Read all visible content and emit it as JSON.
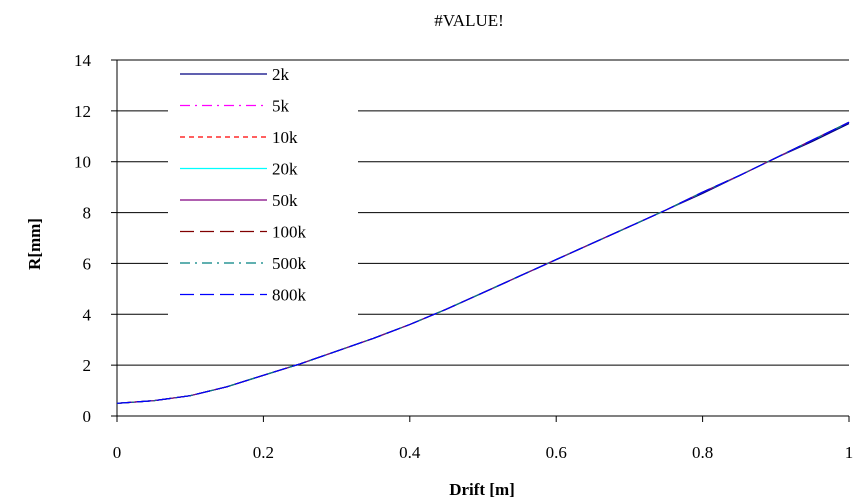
{
  "chart_data": {
    "type": "line",
    "title": "#VALUE!",
    "xlabel": "Drift [m]",
    "ylabel": "R[mm]",
    "xlim": [
      0,
      1
    ],
    "ylim": [
      0,
      14
    ],
    "xticks": [
      0,
      0.2,
      0.4,
      0.6,
      0.8,
      1
    ],
    "xtick_labels": [
      "0",
      "0.2",
      "0.4",
      "0.6",
      "0.8",
      "1"
    ],
    "yticks": [
      0,
      2,
      4,
      6,
      8,
      10,
      12,
      14
    ],
    "ytick_labels": [
      "0",
      "2",
      "4",
      "6",
      "8",
      "10",
      "12",
      "14"
    ],
    "grid": "horizontal",
    "legend_position": "top-left",
    "x": [
      0,
      0.05,
      0.1,
      0.15,
      0.2,
      0.25,
      0.3,
      0.35,
      0.4,
      0.45,
      0.5,
      0.55,
      0.6,
      0.65,
      0.7,
      0.75,
      0.8,
      0.85,
      0.9,
      0.95,
      1
    ],
    "series": [
      {
        "name": "2k",
        "color": "#000080",
        "dash": "solid",
        "values": [
          0.5,
          0.6,
          0.8,
          1.15,
          1.6,
          2.05,
          2.55,
          3.05,
          3.6,
          4.2,
          4.85,
          5.5,
          6.15,
          6.8,
          7.45,
          8.1,
          8.75,
          9.45,
          10.15,
          10.8,
          11.5
        ]
      },
      {
        "name": "5k",
        "color": "#ff00ff",
        "dash": "dashdot",
        "values": [
          0.5,
          0.6,
          0.8,
          1.15,
          1.6,
          2.05,
          2.55,
          3.05,
          3.6,
          4.2,
          4.85,
          5.5,
          6.15,
          6.8,
          7.45,
          8.1,
          8.8,
          9.45,
          10.15,
          10.85,
          11.55
        ]
      },
      {
        "name": "10k",
        "color": "#ff0000",
        "dash": "dash",
        "values": [
          0.5,
          0.6,
          0.8,
          1.15,
          1.6,
          2.05,
          2.55,
          3.05,
          3.6,
          4.2,
          4.85,
          5.5,
          6.15,
          6.8,
          7.45,
          8.1,
          8.8,
          9.45,
          10.15,
          10.85,
          11.55
        ]
      },
      {
        "name": "20k",
        "color": "#00ffff",
        "dash": "solid",
        "values": [
          0.5,
          0.6,
          0.8,
          1.15,
          1.6,
          2.05,
          2.55,
          3.05,
          3.6,
          4.2,
          4.85,
          5.5,
          6.15,
          6.8,
          7.45,
          8.1,
          8.8,
          9.45,
          10.15,
          10.85,
          11.55
        ]
      },
      {
        "name": "50k",
        "color": "#800080",
        "dash": "solid",
        "values": [
          0.5,
          0.6,
          0.8,
          1.15,
          1.6,
          2.05,
          2.55,
          3.05,
          3.6,
          4.2,
          4.85,
          5.5,
          6.15,
          6.8,
          7.45,
          8.1,
          8.8,
          9.45,
          10.15,
          10.85,
          11.55
        ]
      },
      {
        "name": "100k",
        "color": "#800000",
        "dash": "longdash",
        "values": [
          0.5,
          0.6,
          0.8,
          1.15,
          1.6,
          2.05,
          2.55,
          3.05,
          3.6,
          4.2,
          4.85,
          5.5,
          6.15,
          6.8,
          7.45,
          8.1,
          8.8,
          9.45,
          10.15,
          10.85,
          11.55
        ]
      },
      {
        "name": "500k",
        "color": "#008080",
        "dash": "dashdot",
        "values": [
          0.5,
          0.6,
          0.8,
          1.15,
          1.6,
          2.05,
          2.55,
          3.05,
          3.6,
          4.2,
          4.85,
          5.5,
          6.15,
          6.8,
          7.45,
          8.1,
          8.8,
          9.45,
          10.15,
          10.85,
          11.55
        ]
      },
      {
        "name": "800k",
        "color": "#0000ff",
        "dash": "longdash",
        "values": [
          0.5,
          0.6,
          0.8,
          1.15,
          1.6,
          2.05,
          2.55,
          3.05,
          3.6,
          4.2,
          4.85,
          5.5,
          6.15,
          6.8,
          7.45,
          8.1,
          8.8,
          9.45,
          10.15,
          10.85,
          11.55
        ]
      }
    ]
  }
}
